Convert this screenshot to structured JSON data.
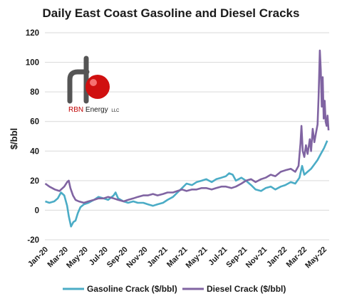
{
  "chart_data": {
    "type": "line",
    "title": "Daily East Coast Gasoline and Diesel Cracks",
    "ylabel": "$/bbl",
    "xlabel": "",
    "ylim": [
      -20,
      120
    ],
    "yticks": [
      "-20",
      "0",
      "20",
      "40",
      "60",
      "80",
      "100",
      "120"
    ],
    "yticks_values": [
      -20,
      0,
      20,
      40,
      60,
      80,
      100,
      120
    ],
    "xticks": [
      "Jan-20",
      "Mar-20",
      "May-20",
      "Jul-20",
      "Sep-20",
      "Nov-20",
      "Jan-21",
      "Mar-21",
      "May-21",
      "Jul-21",
      "Sep-21",
      "Nov-21",
      "Jan-22",
      "Mar-22",
      "May-22"
    ],
    "xlim": [
      "2020-01-01",
      "2022-05-31"
    ],
    "grid": "horizontal",
    "legend_position": "bottom",
    "series": [
      {
        "name": "Gasoline Crack ($/bbl)",
        "color": "#4bacc6",
        "points": [
          [
            "2020-01-02",
            6
          ],
          [
            "2020-01-15",
            5
          ],
          [
            "2020-01-30",
            6
          ],
          [
            "2020-02-10",
            8
          ],
          [
            "2020-02-20",
            12
          ],
          [
            "2020-03-01",
            10
          ],
          [
            "2020-03-10",
            3
          ],
          [
            "2020-03-15",
            -4
          ],
          [
            "2020-03-22",
            -11
          ],
          [
            "2020-03-29",
            -8
          ],
          [
            "2020-04-05",
            -7
          ],
          [
            "2020-04-12",
            -2
          ],
          [
            "2020-04-20",
            2
          ],
          [
            "2020-05-01",
            4
          ],
          [
            "2020-05-15",
            5
          ],
          [
            "2020-06-01",
            7
          ],
          [
            "2020-06-15",
            9
          ],
          [
            "2020-07-01",
            8
          ],
          [
            "2020-07-15",
            7
          ],
          [
            "2020-08-01",
            10
          ],
          [
            "2020-08-07",
            12
          ],
          [
            "2020-08-15",
            8
          ],
          [
            "2020-09-01",
            6
          ],
          [
            "2020-09-15",
            5
          ],
          [
            "2020-10-01",
            6
          ],
          [
            "2020-10-15",
            5
          ],
          [
            "2020-11-01",
            5
          ],
          [
            "2020-11-15",
            4
          ],
          [
            "2020-12-01",
            3
          ],
          [
            "2020-12-15",
            4
          ],
          [
            "2021-01-01",
            5
          ],
          [
            "2021-01-15",
            7
          ],
          [
            "2021-02-01",
            9
          ],
          [
            "2021-02-15",
            12
          ],
          [
            "2021-03-01",
            15
          ],
          [
            "2021-03-15",
            18
          ],
          [
            "2021-04-01",
            17
          ],
          [
            "2021-04-15",
            19
          ],
          [
            "2021-05-01",
            20
          ],
          [
            "2021-05-15",
            21
          ],
          [
            "2021-06-01",
            19
          ],
          [
            "2021-06-15",
            21
          ],
          [
            "2021-07-01",
            22
          ],
          [
            "2021-07-15",
            23
          ],
          [
            "2021-07-25",
            25
          ],
          [
            "2021-08-05",
            24
          ],
          [
            "2021-08-15",
            20
          ],
          [
            "2021-09-01",
            22
          ],
          [
            "2021-09-15",
            20
          ],
          [
            "2021-10-01",
            17
          ],
          [
            "2021-10-15",
            14
          ],
          [
            "2021-11-01",
            13
          ],
          [
            "2021-11-15",
            15
          ],
          [
            "2021-12-01",
            16
          ],
          [
            "2021-12-15",
            14
          ],
          [
            "2022-01-01",
            16
          ],
          [
            "2022-01-15",
            17
          ],
          [
            "2022-02-01",
            19
          ],
          [
            "2022-02-15",
            18
          ],
          [
            "2022-02-28",
            22
          ],
          [
            "2022-03-08",
            30
          ],
          [
            "2022-03-15",
            24
          ],
          [
            "2022-03-25",
            26
          ],
          [
            "2022-04-05",
            28
          ],
          [
            "2022-04-15",
            31
          ],
          [
            "2022-04-25",
            34
          ],
          [
            "2022-05-05",
            38
          ],
          [
            "2022-05-15",
            42
          ],
          [
            "2022-05-25",
            47
          ]
        ]
      },
      {
        "name": "Diesel Crack ($/bbl)",
        "color": "#8064a2",
        "points": [
          [
            "2020-01-02",
            18
          ],
          [
            "2020-01-15",
            16
          ],
          [
            "2020-02-01",
            14
          ],
          [
            "2020-02-15",
            13
          ],
          [
            "2020-03-01",
            16
          ],
          [
            "2020-03-10",
            19
          ],
          [
            "2020-03-15",
            20
          ],
          [
            "2020-03-20",
            15
          ],
          [
            "2020-03-28",
            10
          ],
          [
            "2020-04-05",
            7
          ],
          [
            "2020-04-15",
            6
          ],
          [
            "2020-05-01",
            5
          ],
          [
            "2020-05-15",
            6
          ],
          [
            "2020-06-01",
            7
          ],
          [
            "2020-06-15",
            8
          ],
          [
            "2020-07-01",
            8
          ],
          [
            "2020-07-15",
            9
          ],
          [
            "2020-08-01",
            8
          ],
          [
            "2020-08-15",
            7
          ],
          [
            "2020-09-01",
            6
          ],
          [
            "2020-09-15",
            7
          ],
          [
            "2020-10-01",
            8
          ],
          [
            "2020-10-15",
            9
          ],
          [
            "2020-11-01",
            10
          ],
          [
            "2020-11-15",
            10
          ],
          [
            "2020-12-01",
            11
          ],
          [
            "2020-12-15",
            10
          ],
          [
            "2021-01-01",
            11
          ],
          [
            "2021-01-15",
            12
          ],
          [
            "2021-02-01",
            12
          ],
          [
            "2021-02-15",
            13
          ],
          [
            "2021-03-01",
            14
          ],
          [
            "2021-03-15",
            13
          ],
          [
            "2021-04-01",
            14
          ],
          [
            "2021-04-15",
            14
          ],
          [
            "2021-05-01",
            15
          ],
          [
            "2021-05-15",
            15
          ],
          [
            "2021-06-01",
            14
          ],
          [
            "2021-06-15",
            15
          ],
          [
            "2021-07-01",
            16
          ],
          [
            "2021-07-15",
            16
          ],
          [
            "2021-08-01",
            15
          ],
          [
            "2021-08-15",
            16
          ],
          [
            "2021-09-01",
            18
          ],
          [
            "2021-09-15",
            20
          ],
          [
            "2021-10-01",
            21
          ],
          [
            "2021-10-15",
            19
          ],
          [
            "2021-11-01",
            21
          ],
          [
            "2021-11-15",
            22
          ],
          [
            "2021-12-01",
            24
          ],
          [
            "2021-12-15",
            23
          ],
          [
            "2022-01-01",
            26
          ],
          [
            "2022-01-15",
            27
          ],
          [
            "2022-02-01",
            28
          ],
          [
            "2022-02-15",
            26
          ],
          [
            "2022-02-25",
            30
          ],
          [
            "2022-03-03",
            45
          ],
          [
            "2022-03-06",
            57
          ],
          [
            "2022-03-10",
            40
          ],
          [
            "2022-03-15",
            36
          ],
          [
            "2022-03-20",
            44
          ],
          [
            "2022-03-25",
            38
          ],
          [
            "2022-04-01",
            48
          ],
          [
            "2022-04-05",
            40
          ],
          [
            "2022-04-10",
            55
          ],
          [
            "2022-04-15",
            46
          ],
          [
            "2022-04-20",
            52
          ],
          [
            "2022-04-25",
            58
          ],
          [
            "2022-04-28",
            76
          ],
          [
            "2022-05-02",
            108
          ],
          [
            "2022-05-05",
            95
          ],
          [
            "2022-05-08",
            70
          ],
          [
            "2022-05-11",
            90
          ],
          [
            "2022-05-14",
            62
          ],
          [
            "2022-05-17",
            74
          ],
          [
            "2022-05-20",
            60
          ],
          [
            "2022-05-23",
            57
          ],
          [
            "2022-05-26",
            64
          ],
          [
            "2022-05-29",
            54
          ]
        ]
      }
    ]
  },
  "logo": {
    "brand": "RBN",
    "word": " Energy",
    "suffix": "LLC",
    "colors": {
      "pipe": "#555555",
      "ball": "#d01010",
      "brand_red": "#c00000"
    }
  }
}
